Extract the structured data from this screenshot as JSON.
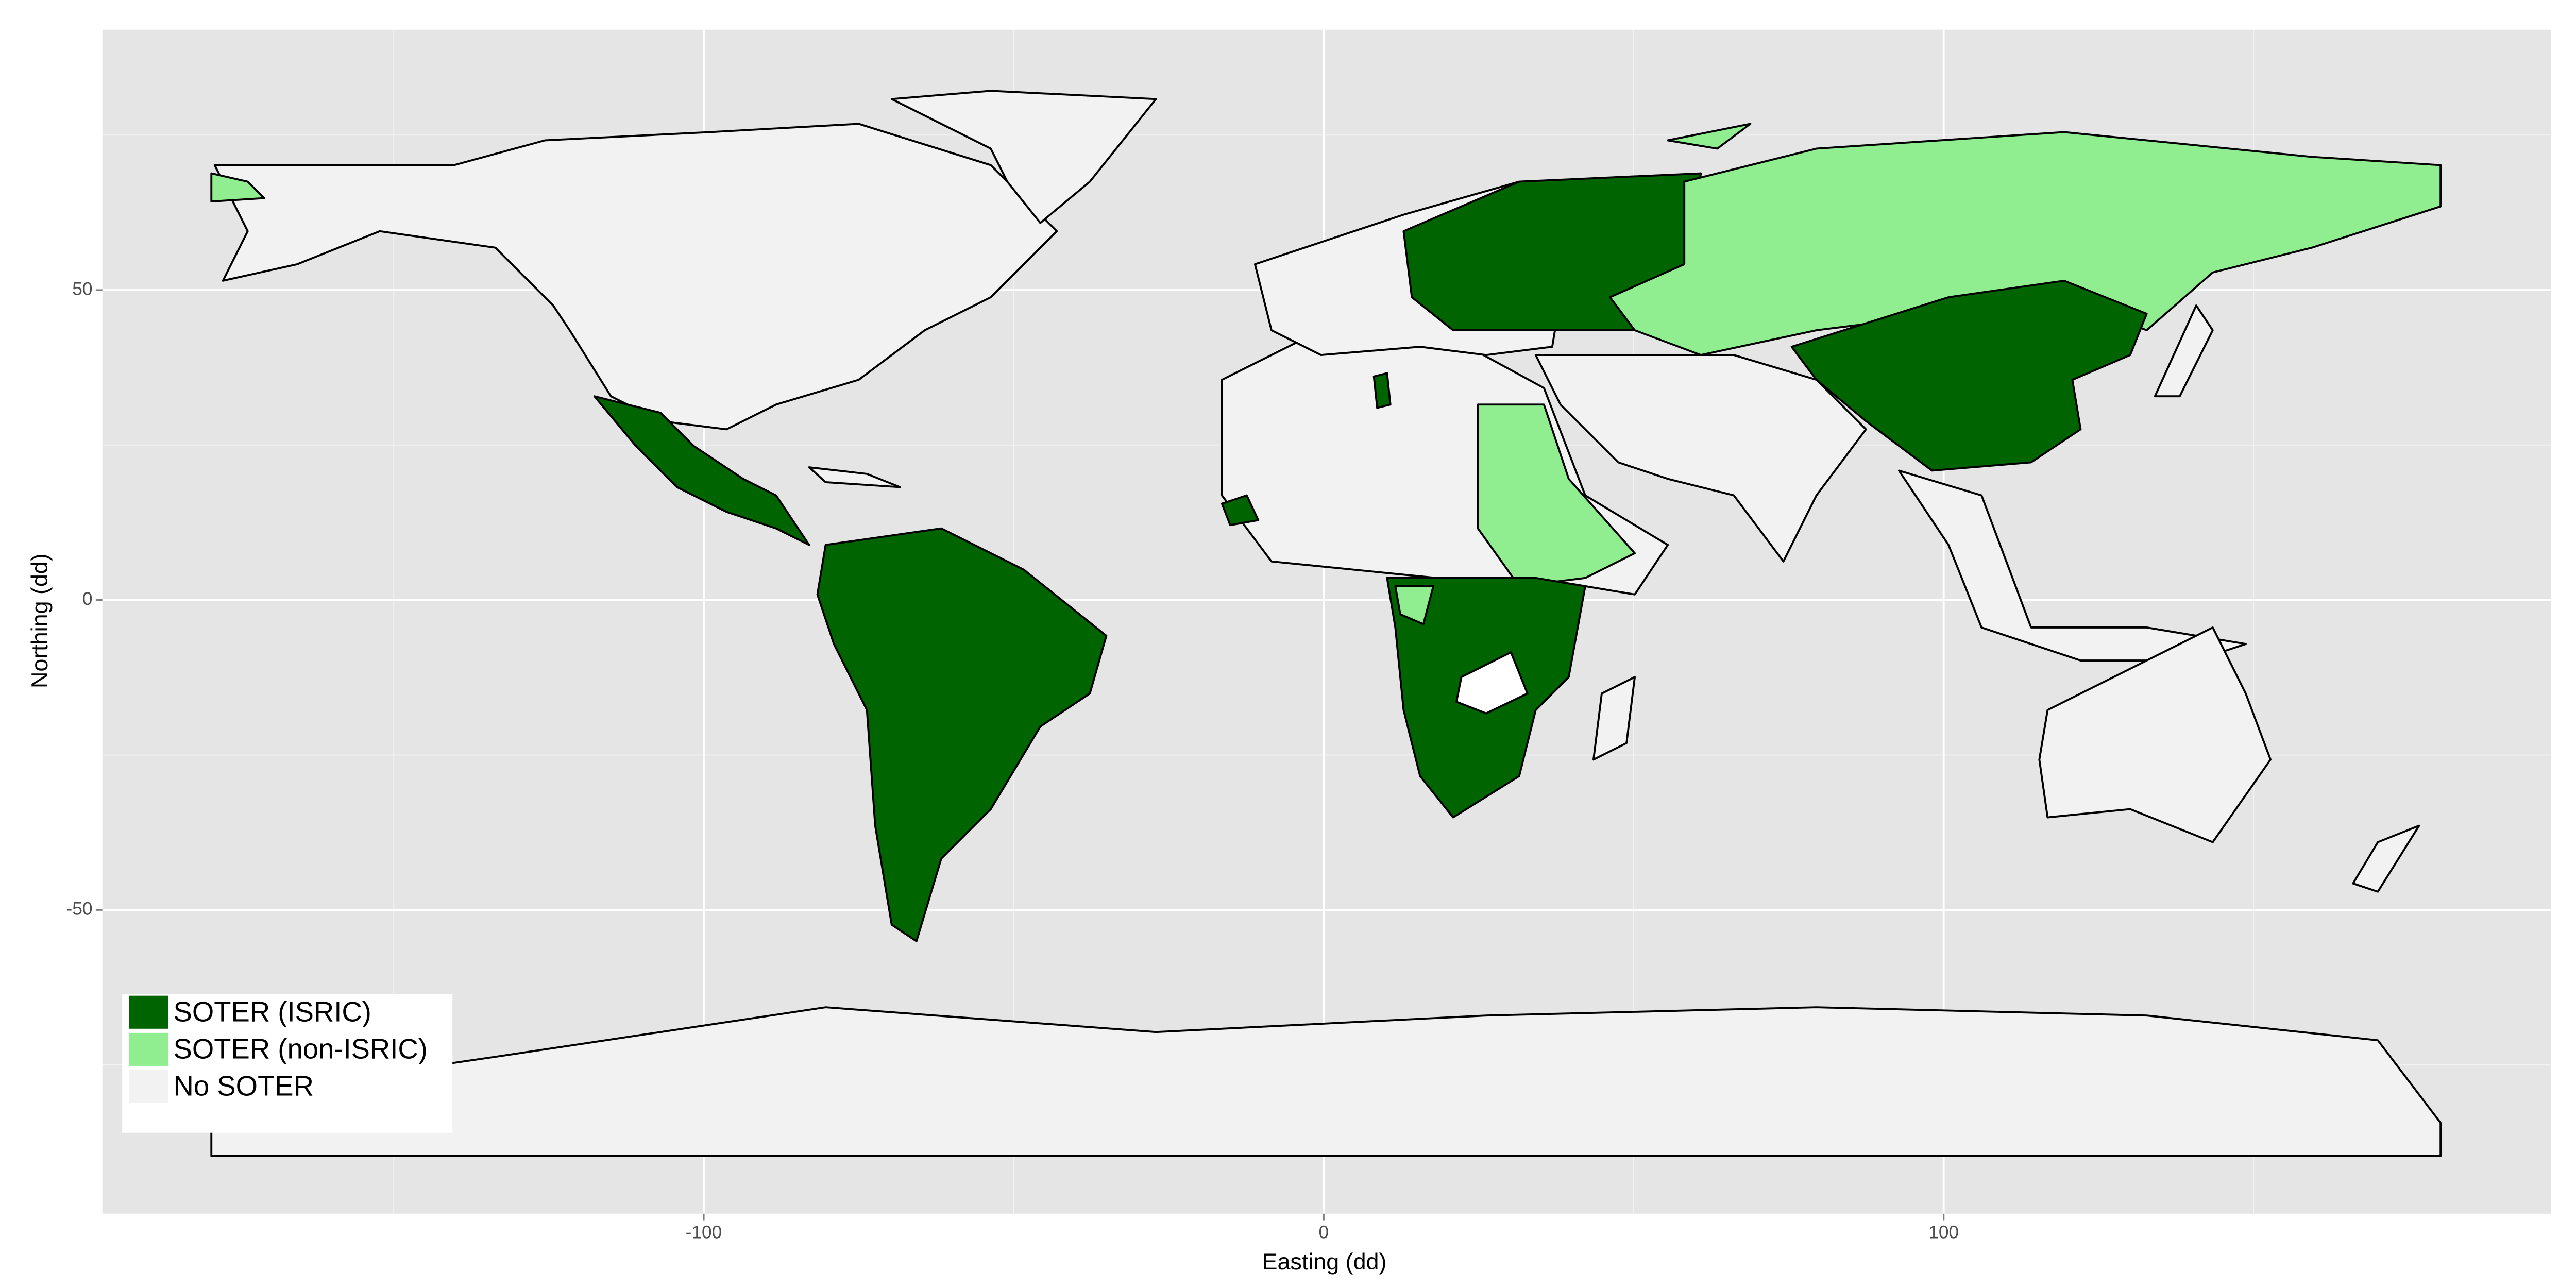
{
  "chart_data": {
    "type": "map",
    "xlabel": "Easting (dd)",
    "ylabel": "Northing (dd)",
    "xlim": [
      -197,
      198
    ],
    "ylim": [
      -99,
      92
    ],
    "xticks": [
      -100,
      0,
      100
    ],
    "yticks": [
      -50,
      0,
      50
    ],
    "grid": true,
    "legend": {
      "position": "bottom-left",
      "items": [
        {
          "name": "SOTER (ISRIC)",
          "color": "#006400"
        },
        {
          "name": "SOTER (non-ISRIC)",
          "color": "#90ee90"
        },
        {
          "name": "No SOTER",
          "color": "#f2f2f2"
        }
      ]
    }
  }
}
